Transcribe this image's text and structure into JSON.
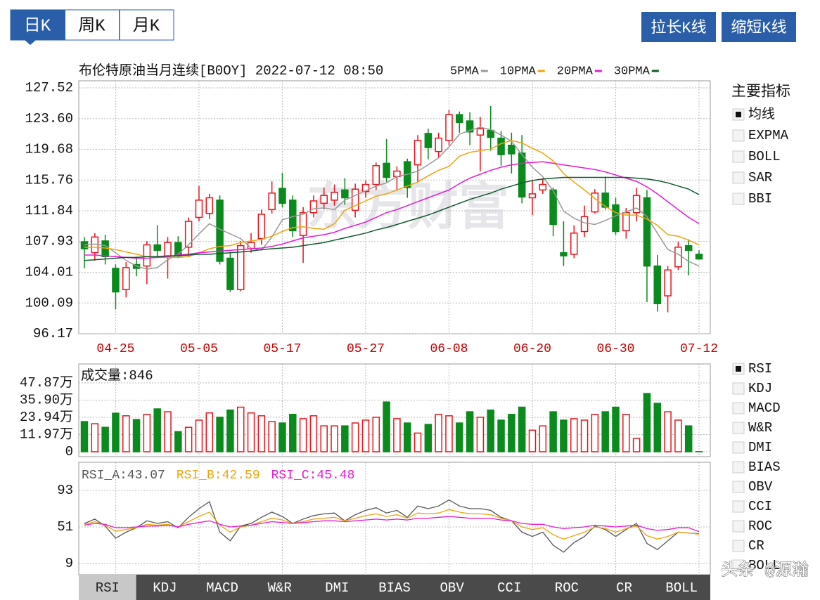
{
  "chart_data": [
    {
      "type": "candlestick",
      "title": "布伦特原油当月连续[B0OY] 2022-07-12 08:50",
      "watermark": "东方财富",
      "categories": [
        null,
        null,
        null,
        "04-25",
        null,
        null,
        null,
        null,
        null,
        null,
        null,
        "05-05",
        null,
        null,
        null,
        null,
        null,
        null,
        null,
        "05-17",
        null,
        null,
        null,
        null,
        null,
        null,
        null,
        "05-27",
        null,
        null,
        null,
        null,
        null,
        null,
        null,
        "06-08",
        null,
        null,
        null,
        null,
        null,
        null,
        null,
        "06-20",
        null,
        null,
        null,
        null,
        null,
        null,
        null,
        "06-30",
        null,
        null,
        null,
        null,
        null,
        null,
        null,
        "07-12"
      ],
      "open": [
        107.9,
        106.5,
        108,
        104.5,
        101.8,
        105,
        104.8,
        107.5,
        105.9,
        107.8,
        107.2,
        111,
        111.5,
        113.2,
        105.8,
        101.8,
        107,
        108.3,
        112,
        114.7,
        113.2,
        108.7,
        111.6,
        112.8,
        113.2,
        114.5,
        111.9,
        114.3,
        115.2,
        117.9,
        116.2,
        118.1,
        117.7,
        121.7,
        119.4,
        120.8,
        124.1,
        123.3,
        121.5,
        122.1,
        121.1,
        120.2,
        119.2,
        113.5,
        114.5,
        114.5,
        106.5,
        106.3,
        109.2,
        111.7,
        114.1,
        112.6,
        109.3,
        111.6,
        113.5,
        104.8,
        101,
        104.7,
        107.4,
        106.3
      ],
      "high": [
        108.5,
        109,
        108.8,
        105,
        105.3,
        106,
        108,
        110,
        108.5,
        108.6,
        111,
        115,
        114,
        113.8,
        106.5,
        108,
        109,
        112,
        115.6,
        116.7,
        113.8,
        112.3,
        113.8,
        114.8,
        115.2,
        116,
        115.3,
        115.7,
        118,
        121,
        117.5,
        118.5,
        121.5,
        122.3,
        121.8,
        124.7,
        124.5,
        124.4,
        123.8,
        125.2,
        122,
        121.8,
        121.5,
        115.8,
        116,
        114.8,
        110.5,
        110,
        112.5,
        114.6,
        116.2,
        113.5,
        112.2,
        114.8,
        114.5,
        106.2,
        104.8,
        107.9,
        108.2,
        106.8
      ],
      "low": [
        104.5,
        105.5,
        105,
        99.3,
        100.8,
        103.5,
        102.5,
        106,
        103.2,
        105.8,
        106,
        110.5,
        110.8,
        105,
        101.5,
        101.6,
        106.5,
        107.5,
        111.5,
        112.3,
        108.5,
        105.2,
        111,
        112,
        112.5,
        112.6,
        111,
        113.5,
        114.5,
        115.5,
        114.5,
        113.5,
        115.5,
        118.4,
        118.6,
        120.2,
        121.8,
        120.2,
        116.9,
        119.5,
        117.6,
        116.6,
        112.8,
        111.3,
        114,
        108.6,
        104.8,
        105.8,
        108.5,
        111.5,
        112,
        108.8,
        108.3,
        110.5,
        100.2,
        99,
        98.9,
        104.3,
        103.6,
        105.6
      ],
      "close": [
        107,
        108.5,
        106,
        101.5,
        104.6,
        104.5,
        107.5,
        106.8,
        107.8,
        106.1,
        110.5,
        113.2,
        113.5,
        105.4,
        101.8,
        107.4,
        107.8,
        111.4,
        114.1,
        112.8,
        109.3,
        111.6,
        113.1,
        113.8,
        114.2,
        113.5,
        114.6,
        115.2,
        117.6,
        116.1,
        116.9,
        114.8,
        120.8,
        119.9,
        121.1,
        124.1,
        123.1,
        121.9,
        122.3,
        121.2,
        119,
        119.1,
        113.6,
        114,
        115.2,
        110.1,
        106.1,
        109,
        111.1,
        114.1,
        112.3,
        109.2,
        111.6,
        113.8,
        104.8,
        100,
        104.3,
        107.2,
        106.8,
        105.7
      ],
      "up_color": "#e8141c",
      "down_color": "#0b8a1d",
      "series": [
        {
          "name": "5PMA",
          "color": "#999999",
          "values": [
            107.5,
            107.6,
            107.4,
            106.5,
            105.5,
            104.8,
            104.4,
            104.6,
            105.6,
            106.3,
            107.5,
            108.9,
            110.2,
            109.5,
            108.9,
            108.3,
            107.1,
            106.8,
            108.5,
            110.7,
            111.1,
            111.4,
            112.1,
            112.2,
            112,
            113.2,
            113.8,
            114.4,
            115,
            115.4,
            116.2,
            116.5,
            116.9,
            117.7,
            118.6,
            120,
            121.6,
            122.1,
            122.5,
            122.2,
            121.5,
            120.7,
            119,
            117.4,
            116.2,
            114.4,
            111.8,
            110.9,
            110.3,
            110.1,
            110.6,
            111.2,
            111.7,
            112.2,
            111.1,
            109,
            106.9,
            106.3,
            105.4,
            104.8
          ]
        },
        {
          "name": "10PMA",
          "color": "#f0a30a",
          "values": [
            107.2,
            107.2,
            107.1,
            106.9,
            106.6,
            106.3,
            106,
            105.9,
            105.9,
            105.9,
            106,
            106.5,
            107,
            107.3,
            107.4,
            107.8,
            108,
            108.2,
            108.6,
            109.2,
            109.7,
            109.8,
            109.6,
            109.5,
            110.2,
            111.9,
            112.5,
            113.1,
            113.7,
            114,
            114.5,
            115,
            115.5,
            116.3,
            117,
            117.5,
            118.8,
            119.3,
            119.5,
            119.7,
            120.4,
            120.8,
            120.5,
            119.8,
            119.2,
            118.2,
            116.6,
            115.5,
            114.5,
            113.4,
            112.4,
            111.6,
            111.3,
            111.3,
            110.8,
            110,
            108.8,
            108.6,
            108.1,
            107.5
          ]
        },
        {
          "name": "20PMA",
          "color": "#e619d6",
          "values": [
            106.2,
            106.2,
            106.1,
            106,
            105.9,
            105.8,
            105.8,
            105.9,
            106,
            106.2,
            106.3,
            106.5,
            106.6,
            106.7,
            106.8,
            106.9,
            107,
            107.1,
            107.3,
            107.6,
            108,
            108.4,
            108.6,
            108.8,
            109.1,
            109.6,
            110,
            110.4,
            111,
            111.6,
            112,
            112.5,
            113,
            113.5,
            114,
            114.5,
            115.3,
            116,
            116.5,
            117,
            117.4,
            117.7,
            117.9,
            118,
            118.1,
            117.9,
            117.7,
            117.5,
            117.3,
            117.1,
            116.8,
            116.4,
            116,
            115.6,
            114.9,
            114,
            113,
            112,
            111,
            110.2
          ]
        },
        {
          "name": "30PMA",
          "color": "#0e5a2c",
          "values": [
            105.5,
            105.6,
            105.7,
            105.8,
            105.9,
            105.9,
            106,
            106,
            106.1,
            106.1,
            106.2,
            106.3,
            106.3,
            106.4,
            106.5,
            106.6,
            106.7,
            106.9,
            107,
            107.1,
            107.2,
            107.4,
            107.6,
            107.8,
            108.1,
            108.4,
            108.7,
            109,
            109.4,
            109.7,
            110.1,
            110.5,
            110.9,
            111.3,
            111.8,
            112.3,
            112.8,
            113.3,
            113.7,
            114.1,
            114.6,
            115,
            115.4,
            115.7,
            115.9,
            116,
            116.1,
            116.1,
            116.1,
            116.1,
            116.1,
            116.1,
            116.1,
            116,
            115.9,
            115.7,
            115.4,
            115,
            114.6,
            113.9
          ]
        }
      ],
      "ylim": [
        96.17,
        127.52
      ],
      "yticks": [
        {
          "value": 127.52,
          "label": "127.52"
        },
        {
          "value": 123.6,
          "label": "123.60"
        },
        {
          "value": 119.68,
          "label": "119.68"
        },
        {
          "value": 115.76,
          "label": "115.76"
        },
        {
          "value": 111.84,
          "label": "111.84"
        },
        {
          "value": 107.93,
          "label": "107.93"
        },
        {
          "value": 104.01,
          "label": "104.01"
        },
        {
          "value": 100.09,
          "label": "100.09"
        },
        {
          "value": 96.17,
          "label": "96.17"
        }
      ],
      "grid": true
    },
    {
      "type": "bar",
      "title": "成交量:846",
      "values": [
        21,
        19.5,
        17,
        26.8,
        25,
        22.4,
        26,
        29.8,
        27.8,
        14,
        17,
        22,
        27,
        24,
        29,
        31,
        27,
        25,
        21,
        20,
        26,
        23,
        25,
        18,
        18,
        18,
        20,
        22,
        24,
        34.6,
        23,
        20,
        13,
        19,
        26,
        25,
        20,
        27.8,
        24,
        29,
        22,
        26,
        31,
        15,
        18,
        27.8,
        22,
        23,
        22,
        26,
        27.8,
        31,
        26,
        9.3,
        40.5,
        33.7,
        27.8,
        22,
        18,
        0.0846
      ],
      "ylim": [
        0,
        59.6
      ],
      "yticks": [
        {
          "value": 47.87,
          "label": "47.87万"
        },
        {
          "value": 35.9,
          "label": "35.90万"
        },
        {
          "value": 23.94,
          "label": "23.94万"
        },
        {
          "value": 11.97,
          "label": "11.97万"
        },
        0
      ],
      "grid": true
    },
    {
      "type": "line",
      "series": [
        {
          "name": "RSI_A:43.07",
          "color": "#555555",
          "values": [
            55,
            60,
            52,
            38,
            45,
            50,
            58,
            55,
            57,
            50,
            62,
            72,
            80,
            45,
            35,
            52,
            55,
            62,
            68,
            63,
            55,
            60,
            64,
            66,
            67,
            58,
            65,
            70,
            73,
            67,
            70,
            62,
            75,
            72,
            75,
            82,
            75,
            72,
            72,
            70,
            62,
            58,
            45,
            40,
            45,
            30,
            22,
            33,
            40,
            52,
            48,
            40,
            48,
            55,
            32,
            25,
            35,
            45,
            44,
            43.07
          ]
        },
        {
          "name": "RSI_B:42.59",
          "color": "#f0a30a",
          "values": [
            54,
            57,
            53,
            46,
            48,
            50,
            54,
            53,
            54,
            51,
            57,
            63,
            68,
            53,
            45,
            51,
            53,
            57,
            61,
            59,
            55,
            57,
            60,
            61,
            62,
            58,
            61,
            64,
            66,
            63,
            65,
            61,
            67,
            66,
            67,
            71,
            68,
            66,
            66,
            65,
            61,
            58,
            51,
            48,
            50,
            42,
            37,
            41,
            45,
            51,
            49,
            45,
            49,
            52,
            41,
            37,
            40,
            45,
            44,
            42.59
          ]
        },
        {
          "name": "RSI_C:45.48",
          "color": "#e619d6",
          "values": [
            53,
            55,
            54,
            50,
            50,
            51,
            52,
            52,
            53,
            51,
            54,
            56,
            58,
            54,
            51,
            52,
            53,
            55,
            57,
            56,
            55,
            56,
            57,
            58,
            58,
            57,
            58,
            59,
            60,
            59,
            60,
            59,
            61,
            61,
            62,
            63,
            62,
            61,
            61,
            61,
            59,
            58,
            55,
            54,
            54,
            51,
            49,
            50,
            51,
            53,
            52,
            51,
            52,
            53,
            49,
            47,
            48,
            50,
            50,
            45.48
          ]
        }
      ],
      "ylim": [
        -1.5,
        119.6
      ],
      "yticks": [
        93,
        51,
        9
      ],
      "grid": true
    }
  ],
  "ui": {
    "period_tabs": [
      "日K",
      "周K",
      "月K"
    ],
    "selected_tab": 0,
    "zoom_buttons": [
      "拉长K线",
      "缩短K线"
    ],
    "main_title": "主要指标",
    "main_items": [
      "均线",
      "EXPMA",
      "BOLL",
      "SAR",
      "BBI"
    ],
    "main_checked": 0,
    "sub_items": [
      "RSI",
      "KDJ",
      "MACD",
      "W&R",
      "DMI",
      "BIAS",
      "OBV",
      "CCI",
      "ROC",
      "CR",
      "BOLL"
    ],
    "sub_checked": 0,
    "bottom_tabs": [
      "RSI",
      "KDJ",
      "MACD",
      "W&R",
      "DMI",
      "BIAS",
      "OBV",
      "CCI",
      "ROC",
      "CR",
      "BOLL"
    ],
    "bottom_selected": 0,
    "credit": "头条 @源瀚"
  }
}
